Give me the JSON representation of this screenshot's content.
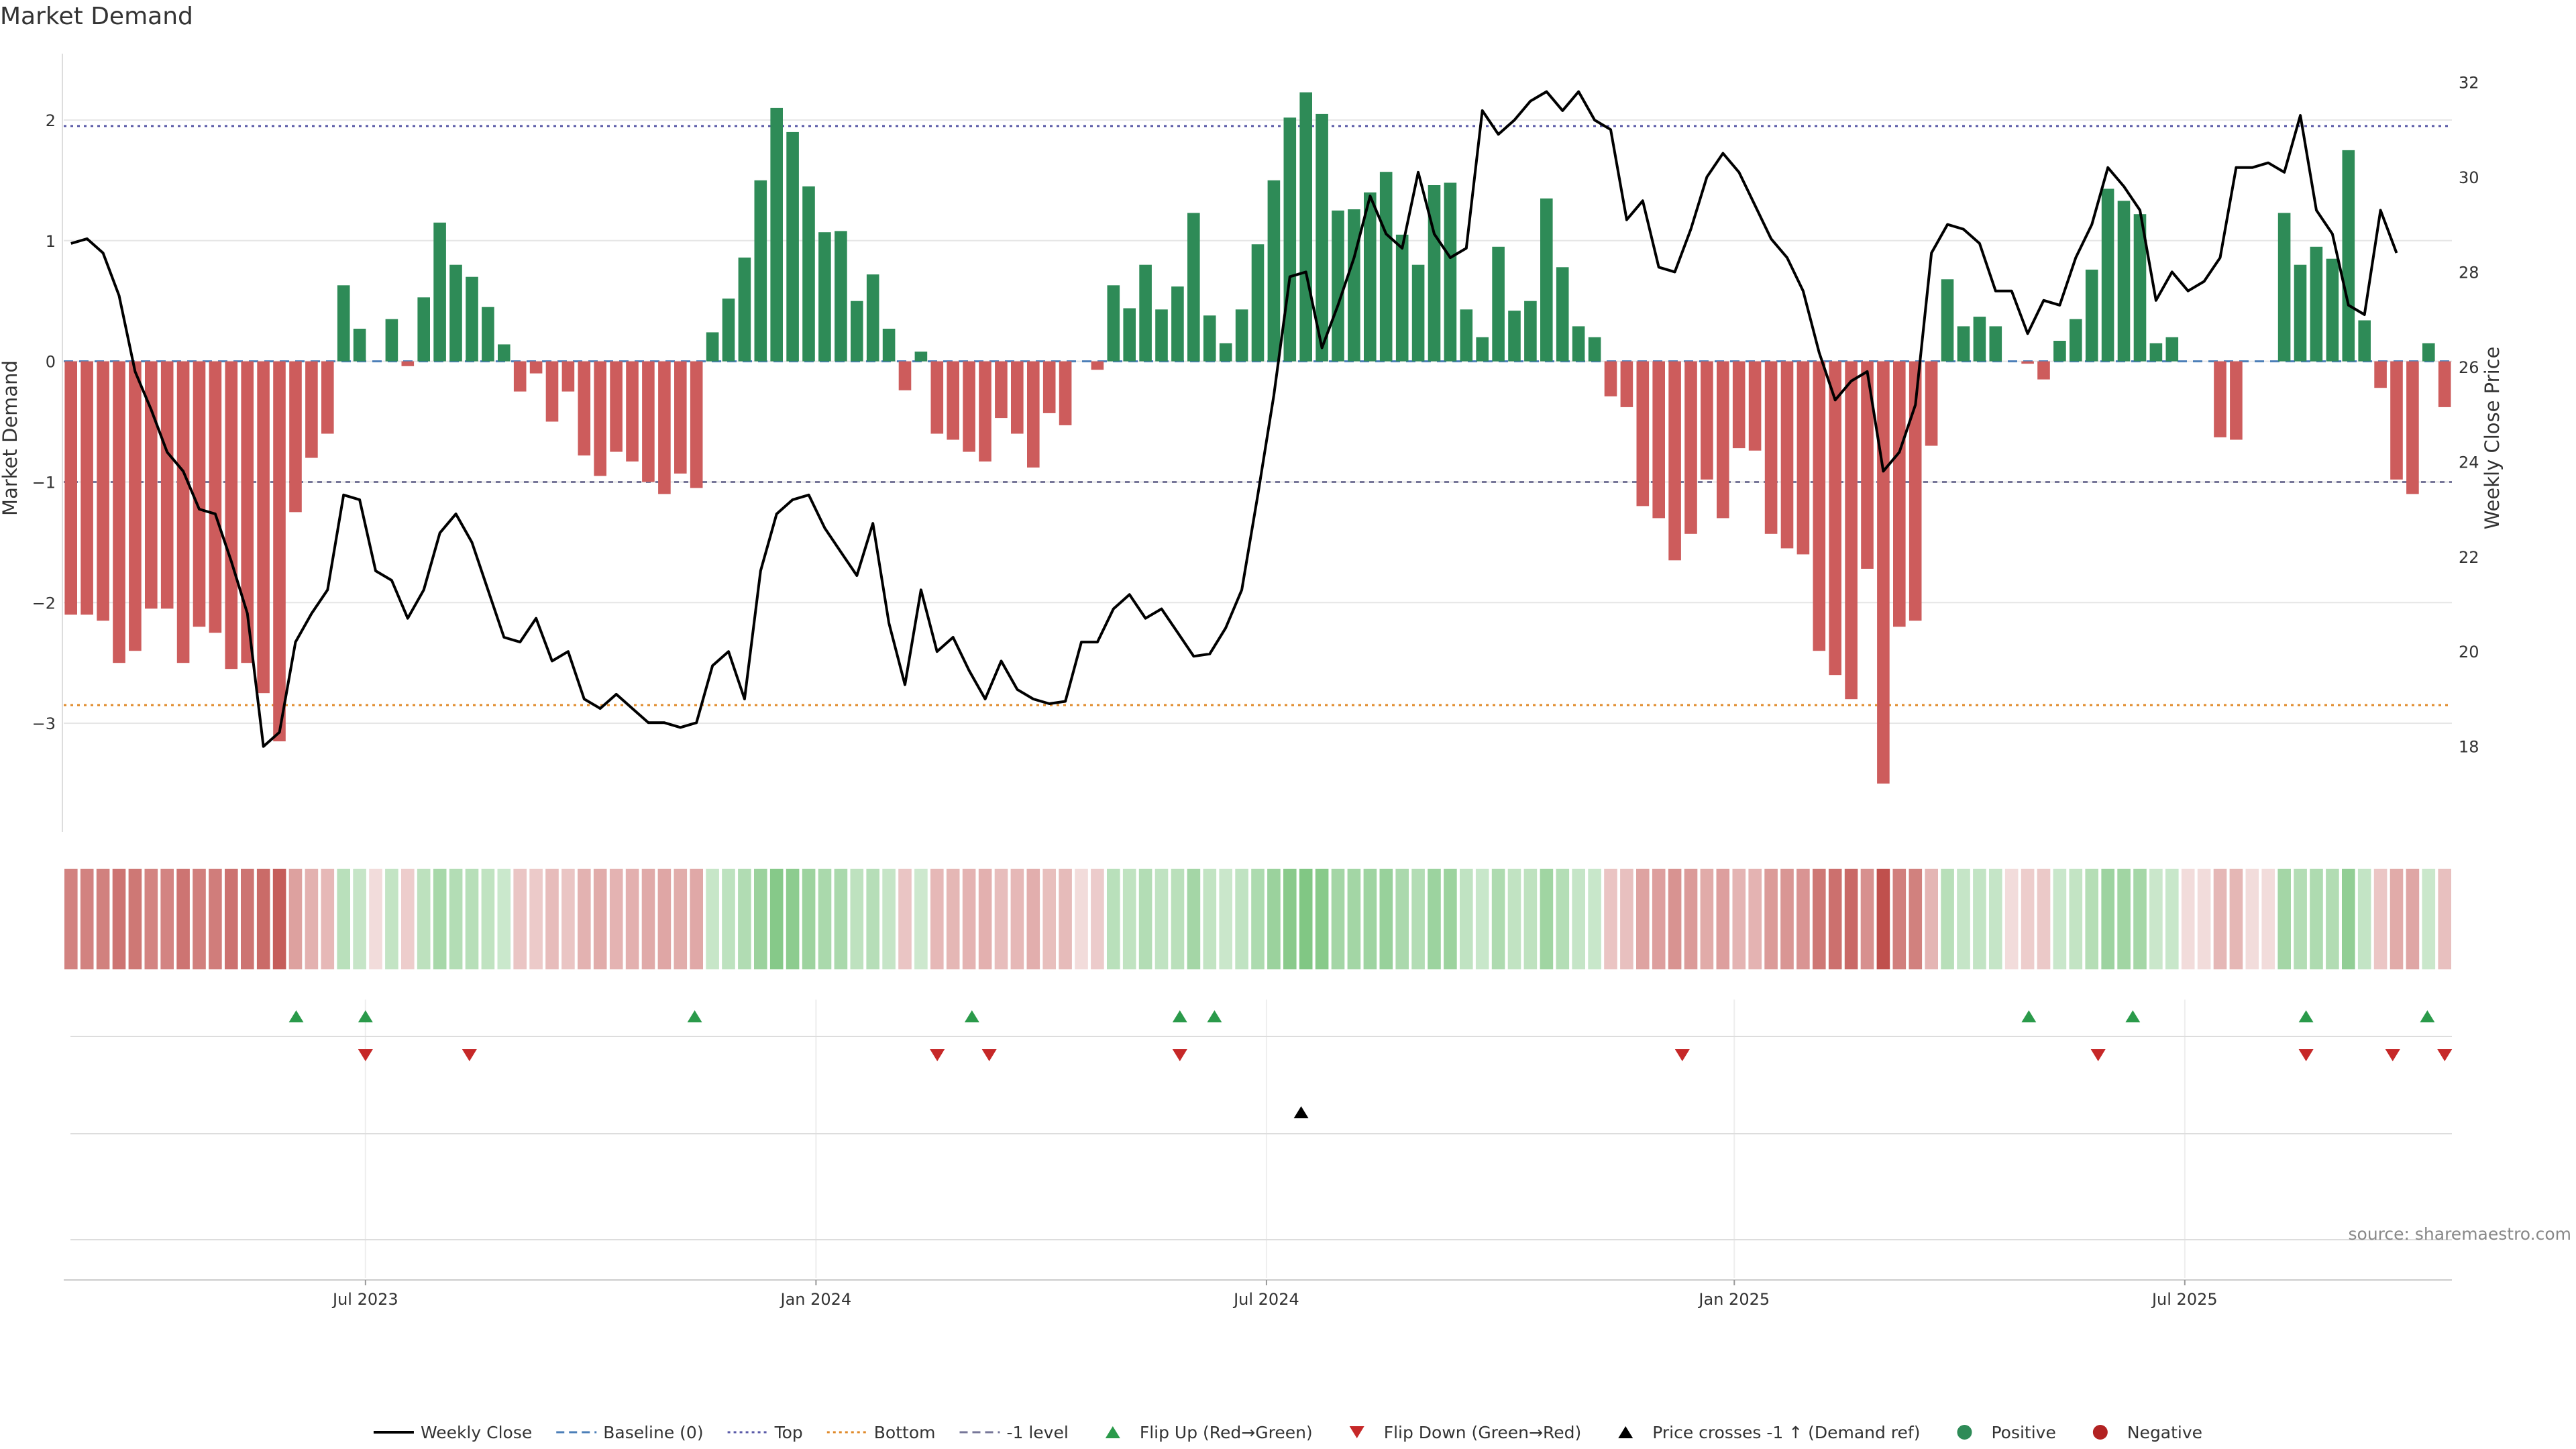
{
  "chart_data": {
    "type": "bar",
    "title": "Market Demand",
    "ylabel": "Market Demand",
    "y2label": "Weekly Close Price",
    "source": "source: sharemaestro.com",
    "ylim": [
      -3.9,
      2.55
    ],
    "y2lim": [
      16.2,
      32.6
    ],
    "yticks": [
      2,
      1,
      0,
      -1,
      -2,
      -3
    ],
    "yticks_labels": [
      "2",
      "1",
      "0",
      "−1",
      "−2",
      "−3"
    ],
    "y2ticks": [
      32,
      30,
      28,
      26,
      24,
      22,
      20,
      18
    ],
    "ref_lines": {
      "top": 1.95,
      "bottom": -2.85,
      "minus_one": -1.0,
      "baseline": 0
    },
    "x_start": "2023-03-06",
    "x_end": "2025-10-20",
    "x_ticks": [
      "2023-07-03",
      "2024-01-01",
      "2024-07-01",
      "2025-01-06",
      "2025-07-07"
    ],
    "x_tick_labels": [
      "Jul 2023",
      "Jan 2024",
      "Jul 2024",
      "Jan 2025",
      "Jul 2025"
    ],
    "demand": [
      -2.1,
      -2.1,
      -2.15,
      -2.5,
      -2.4,
      -2.05,
      -2.05,
      -2.5,
      -2.2,
      -2.25,
      -2.55,
      -2.5,
      -2.75,
      -3.15,
      -1.25,
      -0.8,
      -0.6,
      0.63,
      0.27,
      0,
      0.35,
      -0.04,
      0.53,
      1.15,
      0.8,
      0.7,
      0.45,
      0.14,
      -0.25,
      -0.1,
      -0.5,
      -0.25,
      -0.78,
      -0.95,
      -0.75,
      -0.83,
      -1.0,
      -1.1,
      -0.93,
      -1.05,
      0.24,
      0.52,
      0.86,
      1.5,
      2.1,
      1.9,
      1.45,
      1.07,
      1.08,
      0.5,
      0.72,
      0.27,
      -0.24,
      0.08,
      -0.6,
      -0.65,
      -0.75,
      -0.83,
      -0.47,
      -0.6,
      -0.88,
      -0.43,
      -0.53,
      0,
      -0.07,
      0.63,
      0.44,
      0.8,
      0.43,
      0.62,
      1.23,
      0.38,
      0.15,
      0.43,
      0.97,
      1.5,
      2.02,
      2.23,
      2.05,
      1.25,
      1.26,
      1.4,
      1.57,
      1.05,
      0.8,
      1.46,
      1.48,
      0.43,
      0.2,
      0.95,
      0.42,
      0.5,
      1.35,
      0.78,
      0.29,
      0.2,
      -0.29,
      -0.38,
      -1.2,
      -1.3,
      -1.65,
      -1.43,
      -0.98,
      -1.3,
      -0.72,
      -0.74,
      -1.43,
      -1.55,
      -1.6,
      -2.4,
      -2.6,
      -2.8,
      -1.72,
      -3.5,
      -2.2,
      -2.15,
      -0.7,
      0.68,
      0.29,
      0.37,
      0.29,
      0,
      -0.02,
      -0.15,
      0.17,
      0.35,
      0.76,
      1.43,
      1.33,
      1.22,
      0.15,
      0.2,
      0,
      0,
      -0.63,
      -0.65,
      0,
      0,
      1.23,
      0.8,
      0.95,
      0.85,
      1.75,
      0.34,
      -0.22,
      -0.98,
      -1.1,
      0.15,
      -0.38
    ],
    "price": [
      28.6,
      28.7,
      28.4,
      27.5,
      25.9,
      25.1,
      24.2,
      23.8,
      23.0,
      22.9,
      21.9,
      20.8,
      18.0,
      18.3,
      20.2,
      20.8,
      21.3,
      23.3,
      23.2,
      21.7,
      21.5,
      20.7,
      21.3,
      22.5,
      22.9,
      22.3,
      21.3,
      20.3,
      20.2,
      20.7,
      19.8,
      20.0,
      19.0,
      18.8,
      19.1,
      18.8,
      18.5,
      18.5,
      18.4,
      18.5,
      19.7,
      20.0,
      19.0,
      21.7,
      22.9,
      23.2,
      23.3,
      22.6,
      22.1,
      21.6,
      22.7,
      20.6,
      19.3,
      21.3,
      20.0,
      20.3,
      19.6,
      19.0,
      19.8,
      19.2,
      19.0,
      18.9,
      18.95,
      20.2,
      20.2,
      20.9,
      21.2,
      20.7,
      20.9,
      20.4,
      19.9,
      19.95,
      20.5,
      21.3,
      23.3,
      25.4,
      27.9,
      28.0,
      26.4,
      27.3,
      28.3,
      29.6,
      28.8,
      28.5,
      30.1,
      28.8,
      28.3,
      28.5,
      31.4,
      30.9,
      31.2,
      31.6,
      31.8,
      31.4,
      31.8,
      31.2,
      31.0,
      29.1,
      29.5,
      28.1,
      28.0,
      28.9,
      30.0,
      30.5,
      30.1,
      29.4,
      28.7,
      28.3,
      27.6,
      26.3,
      25.3,
      25.7,
      25.9,
      23.8,
      24.2,
      25.2,
      28.4,
      29.0,
      28.9,
      28.6,
      27.6,
      27.6,
      26.7,
      27.4,
      27.3,
      28.3,
      29.0,
      30.2,
      29.8,
      29.3,
      27.4,
      28.0,
      27.6,
      27.8,
      28.3,
      30.2,
      30.2,
      30.3,
      30.1,
      31.3,
      29.3,
      28.8,
      27.3,
      27.1,
      29.3,
      28.4
    ],
    "flip_up_dates": [
      "2023-06-05",
      "2023-07-03",
      "2023-11-13",
      "2024-03-04",
      "2024-05-27",
      "2024-06-10",
      "2025-05-05",
      "2025-06-16",
      "2025-08-25",
      "2025-10-13"
    ],
    "flip_down_dates": [
      "2023-07-03",
      "2023-08-14",
      "2024-02-19",
      "2024-03-11",
      "2024-05-27",
      "2024-12-16",
      "2025-06-02",
      "2025-08-25",
      "2025-09-29",
      "2025-10-20"
    ],
    "price_cross_dates": [
      "2024-07-15"
    ],
    "legend": [
      {
        "key": "weekly_close",
        "label": "Weekly Close",
        "marker": "solid-line",
        "color": "#000000"
      },
      {
        "key": "baseline",
        "label": "Baseline (0)",
        "marker": "dash-line",
        "color": "#4c7fb8"
      },
      {
        "key": "top",
        "label": "Top",
        "marker": "dot-line",
        "color": "#5b5ba8"
      },
      {
        "key": "bottom",
        "label": "Bottom",
        "marker": "dot-line",
        "color": "#e08a2a"
      },
      {
        "key": "minus_one",
        "label": "-1 level",
        "marker": "dash-line",
        "color": "#777799"
      },
      {
        "key": "flip_up",
        "label": "Flip Up (Red→Green)",
        "marker": "triangle-up",
        "color": "#2a9a4a"
      },
      {
        "key": "flip_down",
        "label": "Flip Down (Green→Red)",
        "marker": "triangle-down",
        "color": "#c62828"
      },
      {
        "key": "price_cross",
        "label": "Price crosses -1 ↑ (Demand ref)",
        "marker": "triangle-up",
        "color": "#000000"
      },
      {
        "key": "positive",
        "label": "Positive",
        "marker": "circle",
        "color": "#2e8b57"
      },
      {
        "key": "negative",
        "label": "Negative",
        "marker": "circle",
        "color": "#b22222"
      }
    ],
    "colors": {
      "positive": "#2e8b57",
      "negative": "#cd5c5c",
      "price_line": "#000000",
      "top": "#5b5ba8",
      "bottom": "#e08a2a",
      "minus_one": "#777799",
      "baseline": "#4c7fb8",
      "flip_up": "#2a9a4a",
      "flip_down": "#c62828",
      "cross": "#000000",
      "grid": "#e6e6e6"
    }
  }
}
